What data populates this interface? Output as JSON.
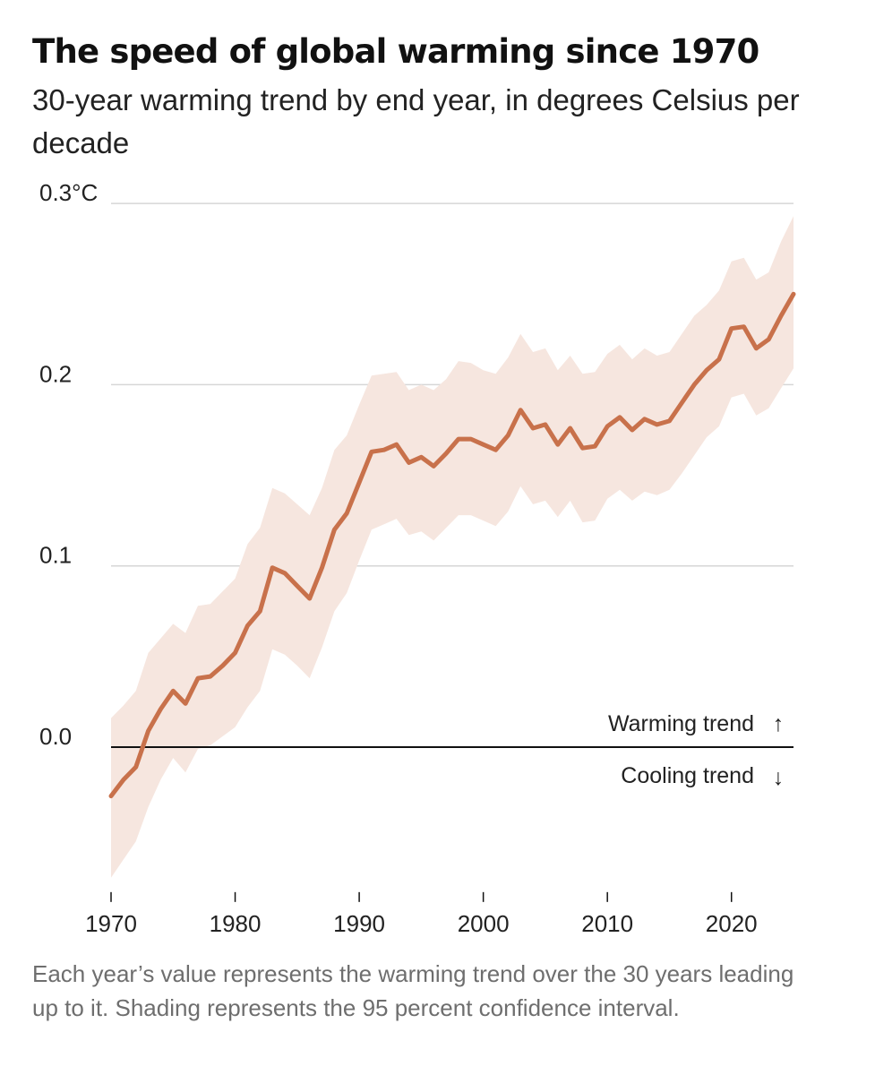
{
  "title": "The speed of global warming since 1970",
  "subtitle": "30-year warming trend by end year, in degrees Celsius per decade",
  "note": "Each year’s value represents the warming trend over the 30 years leading up to it. Shading represents the 95 percent confidence interval.",
  "chart_data": {
    "type": "line",
    "title": "The speed of global warming since 1970",
    "xlabel": "",
    "ylabel": "30-year warming trend by end year, in degrees Celsius per decade",
    "xlim": [
      1970,
      2025
    ],
    "ylim": [
      -0.08,
      0.3
    ],
    "grid": true,
    "x": [
      1970,
      1971,
      1972,
      1973,
      1974,
      1975,
      1976,
      1977,
      1978,
      1979,
      1980,
      1981,
      1982,
      1983,
      1984,
      1985,
      1986,
      1987,
      1988,
      1989,
      1990,
      1991,
      1992,
      1993,
      1994,
      1995,
      1996,
      1997,
      1998,
      1999,
      2000,
      2001,
      2002,
      2003,
      2004,
      2005,
      2006,
      2007,
      2008,
      2009,
      2010,
      2011,
      2012,
      2013,
      2014,
      2015,
      2016,
      2017,
      2018,
      2019,
      2020,
      2021,
      2022,
      2023,
      2024,
      2025
    ],
    "series": [
      {
        "name": "30-year warming trend",
        "color": "#c8714b",
        "values": [
          -0.027,
          -0.018,
          -0.011,
          0.009,
          0.021,
          0.031,
          0.024,
          0.038,
          0.039,
          0.045,
          0.052,
          0.067,
          0.075,
          0.099,
          0.096,
          0.089,
          0.082,
          0.099,
          0.12,
          0.129,
          0.146,
          0.163,
          0.164,
          0.167,
          0.157,
          0.16,
          0.155,
          0.162,
          0.17,
          0.17,
          0.167,
          0.164,
          0.172,
          0.186,
          0.176,
          0.178,
          0.167,
          0.176,
          0.165,
          0.166,
          0.177,
          0.182,
          0.175,
          0.181,
          0.178,
          0.18,
          0.19,
          0.2,
          0.208,
          0.214,
          0.231,
          0.232,
          0.22,
          0.225,
          0.238,
          0.25
        ]
      },
      {
        "name": "95% confidence upper",
        "color": "#f6e6df",
        "values": [
          0.016,
          0.023,
          0.031,
          0.052,
          0.06,
          0.068,
          0.063,
          0.078,
          0.079,
          0.086,
          0.093,
          0.112,
          0.121,
          0.143,
          0.14,
          0.134,
          0.128,
          0.143,
          0.164,
          0.172,
          0.189,
          0.205,
          0.206,
          0.207,
          0.197,
          0.2,
          0.197,
          0.203,
          0.213,
          0.212,
          0.208,
          0.206,
          0.215,
          0.228,
          0.218,
          0.22,
          0.208,
          0.216,
          0.206,
          0.207,
          0.217,
          0.222,
          0.214,
          0.22,
          0.216,
          0.218,
          0.228,
          0.238,
          0.244,
          0.252,
          0.268,
          0.27,
          0.258,
          0.262,
          0.279,
          0.293
        ]
      },
      {
        "name": "95% confidence lower",
        "color": "#f6e6df",
        "values": [
          -0.072,
          -0.062,
          -0.052,
          -0.033,
          -0.018,
          -0.006,
          -0.014,
          -0.001,
          0.001,
          0.006,
          0.011,
          0.022,
          0.031,
          0.054,
          0.051,
          0.045,
          0.038,
          0.055,
          0.075,
          0.085,
          0.103,
          0.12,
          0.123,
          0.126,
          0.117,
          0.119,
          0.114,
          0.121,
          0.128,
          0.128,
          0.125,
          0.122,
          0.13,
          0.144,
          0.134,
          0.136,
          0.127,
          0.136,
          0.124,
          0.125,
          0.137,
          0.142,
          0.136,
          0.141,
          0.139,
          0.142,
          0.151,
          0.161,
          0.171,
          0.177,
          0.193,
          0.195,
          0.183,
          0.187,
          0.198,
          0.209
        ]
      }
    ],
    "ytick_labels": [
      {
        "value": 0.3,
        "label": "0.3°C"
      },
      {
        "value": 0.2,
        "label": "0.2"
      },
      {
        "value": 0.1,
        "label": "0.1"
      },
      {
        "value": 0.0,
        "label": "0.0"
      }
    ],
    "xtick_labels": [
      {
        "value": 1970,
        "label": "1970"
      },
      {
        "value": 1980,
        "label": "1980"
      },
      {
        "value": 1990,
        "label": "1990"
      },
      {
        "value": 2000,
        "label": "2000"
      },
      {
        "value": 2010,
        "label": "2010"
      },
      {
        "value": 2020,
        "label": "2020"
      }
    ],
    "annotations": {
      "warming": "Warming trend",
      "warming_arrow": "↑",
      "cooling": "Cooling trend",
      "cooling_arrow": "↓"
    }
  }
}
